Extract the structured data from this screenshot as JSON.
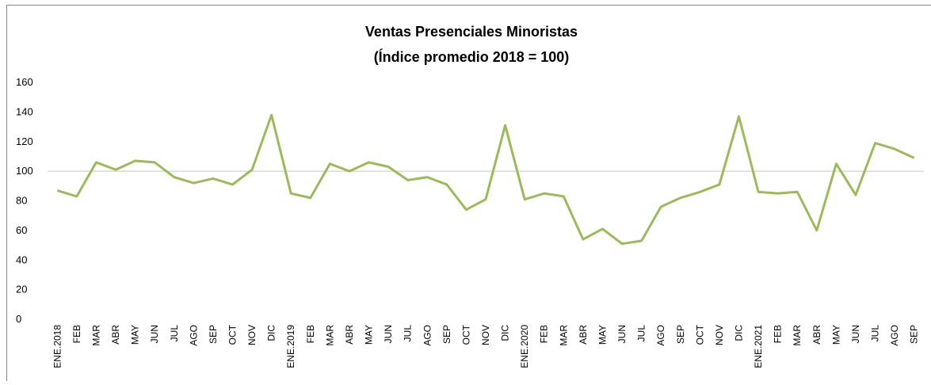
{
  "chart_data": {
    "type": "line",
    "title": [
      "Ventas Presenciales Minoristas",
      "(Índice promedio 2018 = 100)"
    ],
    "categories": [
      "ENE.2018",
      "FEB",
      "MAR",
      "ABR",
      "MAY",
      "JUN",
      "JUL",
      "AGO",
      "SEP",
      "OCT",
      "NOV",
      "DIC",
      "ENE.2019",
      "FEB",
      "MAR",
      "ABR",
      "MAY",
      "JUN",
      "JUL",
      "AGO",
      "SEP",
      "OCT",
      "NOV",
      "DIC",
      "ENE.2020",
      "FEB",
      "MAR",
      "ABR",
      "MAY",
      "JUN",
      "JUL",
      "AGO",
      "SEP",
      "OCT",
      "NOV",
      "DIC",
      "ENE.2021",
      "FEB",
      "MAR",
      "ABR",
      "MAY",
      "JUN",
      "JUL",
      "AGO",
      "SEP"
    ],
    "series": [
      {
        "color": "#9bbb59",
        "values": [
          87,
          83,
          106,
          101,
          107,
          106,
          96,
          92,
          95,
          91,
          101,
          138,
          85,
          82,
          105,
          100,
          106,
          103,
          94,
          96,
          91,
          74,
          81,
          131,
          81,
          85,
          83,
          54,
          61,
          51,
          53,
          76,
          82,
          86,
          91,
          137,
          86,
          85,
          86,
          60,
          105,
          84,
          119,
          115,
          109
        ]
      }
    ],
    "ylim": [
      0,
      160
    ],
    "yticks": [
      0,
      20,
      40,
      60,
      80,
      100,
      120,
      140,
      160
    ],
    "hline": 100
  }
}
